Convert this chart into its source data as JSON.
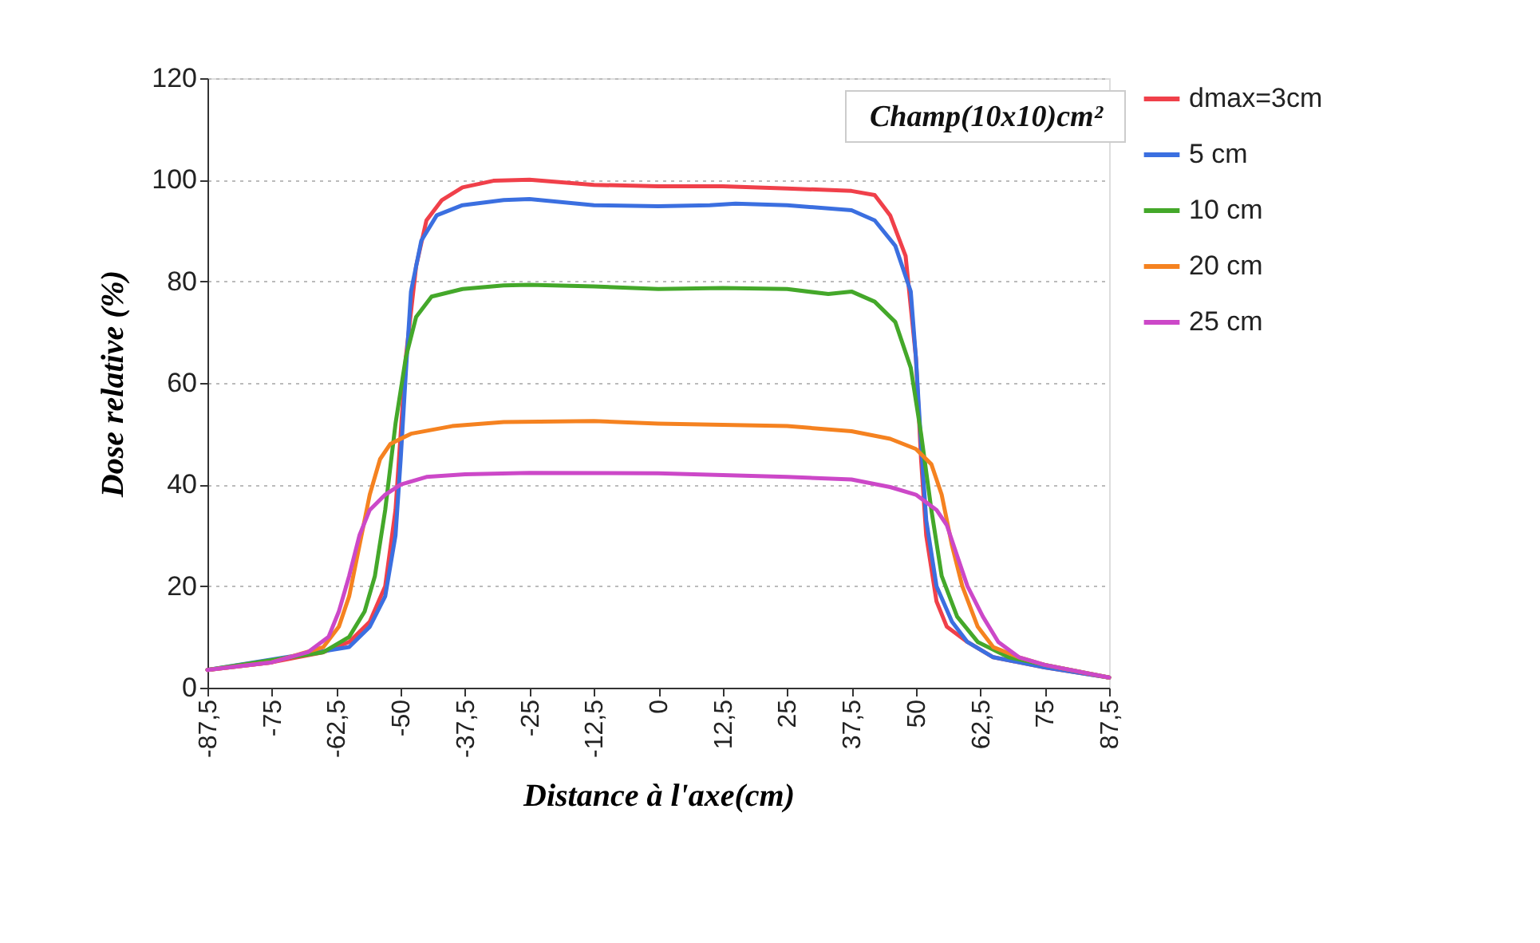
{
  "chart_data": {
    "type": "line",
    "xlabel": "Distance à l'axe(cm)",
    "ylabel": "Dose relative (%)",
    "annotations": [
      "Champ(10x10)cm²"
    ],
    "xlim": [
      -87.5,
      87.5
    ],
    "ylim": [
      0,
      120
    ],
    "yticks": [
      0,
      20,
      40,
      60,
      80,
      100,
      120
    ],
    "xticks": [
      {
        "value": -87.5,
        "label": "-87,5"
      },
      -75,
      {
        "value": -62.5,
        "label": "-62,5"
      },
      -50,
      {
        "value": -37.5,
        "label": "-37,5"
      },
      -25,
      {
        "value": -12.5,
        "label": "-12,5"
      },
      0,
      {
        "value": 12.5,
        "label": "12,5"
      },
      25,
      {
        "value": 37.5,
        "label": "37,5"
      },
      50,
      {
        "value": 62.5,
        "label": "62,5"
      },
      75,
      {
        "value": 87.5,
        "label": "87,5"
      }
    ],
    "grid": "y",
    "legend": "right",
    "marker": "none",
    "line_style": "solid",
    "series": [
      {
        "name": "dmax=3cm",
        "color": "#f0404a",
        "x": [
          -87.5,
          -75,
          -65,
          -60,
          -56,
          -53,
          -51,
          -50,
          -49,
          -47,
          -45,
          -42,
          -38,
          -32,
          -25,
          -12.5,
          0,
          12.5,
          25,
          37.5,
          42,
          45,
          48,
          50,
          51,
          52,
          54,
          56,
          60,
          65,
          75,
          87.5
        ],
        "values": [
          3.5,
          5,
          7,
          9,
          13,
          20,
          35,
          50,
          65,
          83,
          92,
          96,
          98.5,
          99.8,
          100,
          99,
          98.7,
          98.7,
          98.3,
          97.8,
          97,
          93,
          85,
          65,
          45,
          30,
          17,
          12,
          9,
          6,
          4,
          2
        ]
      },
      {
        "name": "5 cm",
        "color": "#3b6fe0",
        "x": [
          -87.5,
          -60,
          -56,
          -53,
          -51,
          -50,
          -49,
          -48,
          -46,
          -43,
          -38,
          -30,
          -25,
          -12.5,
          0,
          10,
          15,
          25,
          37.5,
          42,
          46,
          49,
          50,
          51,
          52,
          54,
          57,
          60,
          65,
          75,
          87.5
        ],
        "values": [
          3.5,
          8,
          12,
          18,
          30,
          45,
          62,
          78,
          88,
          93,
          95,
          96,
          96.2,
          95,
          94.8,
          95,
          95.3,
          95,
          94,
          92,
          87,
          78,
          65,
          48,
          33,
          20,
          13,
          9,
          6,
          4,
          2
        ]
      },
      {
        "name": "10 cm",
        "color": "#44a82a",
        "x": [
          -87.5,
          -65,
          -60,
          -57,
          -55,
          -53,
          -51,
          -49,
          -47,
          -44,
          -38,
          -30,
          -25,
          -12.5,
          0,
          12.5,
          25,
          33,
          37.5,
          42,
          46,
          49,
          51,
          53,
          55,
          58,
          62,
          68,
          75,
          87.5
        ],
        "values": [
          3.5,
          7,
          10,
          15,
          22,
          35,
          52,
          65,
          73,
          77,
          78.5,
          79.2,
          79.3,
          79,
          78.5,
          78.7,
          78.5,
          77.5,
          78,
          76,
          72,
          63,
          50,
          35,
          22,
          14,
          9,
          6,
          4.5,
          2
        ]
      },
      {
        "name": "20 cm",
        "color": "#f58220",
        "x": [
          -87.5,
          -75,
          -70,
          -65,
          -62,
          -60,
          -58,
          -56,
          -54,
          -52,
          -48,
          -40,
          -30,
          -12.5,
          0,
          25,
          37.5,
          45,
          50,
          53,
          55,
          57,
          59,
          62,
          65,
          70,
          75,
          87.5
        ],
        "values": [
          3.5,
          5,
          6.5,
          8,
          12,
          18,
          28,
          38,
          45,
          48,
          50,
          51.5,
          52.3,
          52.5,
          52,
          51.5,
          50.5,
          49,
          47,
          44,
          38,
          28,
          20,
          12,
          8,
          6,
          4.5,
          2
        ]
      },
      {
        "name": "25 cm",
        "color": "#cc48c8",
        "x": [
          -87.5,
          -75,
          -68,
          -64,
          -62,
          -60,
          -58,
          -56,
          -53,
          -50,
          -45,
          -37.5,
          -25,
          0,
          25,
          37.5,
          45,
          50,
          54,
          56,
          58,
          60,
          63,
          66,
          70,
          75,
          87.5
        ],
        "values": [
          3.5,
          5,
          7,
          10,
          15,
          22,
          30,
          35,
          38,
          40,
          41.5,
          42,
          42.3,
          42.2,
          41.5,
          41,
          39.5,
          38,
          35,
          32,
          26,
          20,
          14,
          9,
          6,
          4.5,
          2
        ]
      }
    ]
  }
}
